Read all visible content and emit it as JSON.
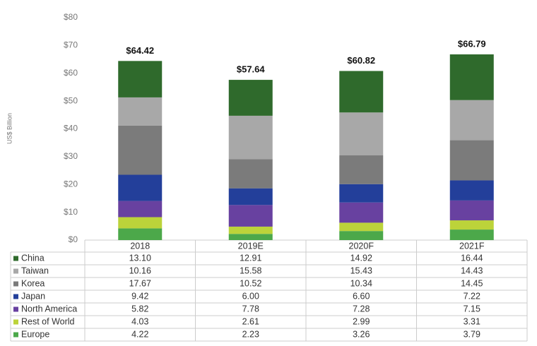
{
  "chart_data": {
    "type": "stacked-bar",
    "y_label": "US$ Billion",
    "categories": [
      "2018",
      "2019E",
      "2020F",
      "2021F"
    ],
    "series": [
      {
        "name": "China",
        "color": "#2f6a2c",
        "values": [
          13.1,
          12.91,
          14.92,
          16.44
        ],
        "value_labels": [
          "13.10",
          "12.91",
          "14.92",
          "16.44"
        ]
      },
      {
        "name": "Taiwan",
        "color": "#a8a8a8",
        "values": [
          10.16,
          15.58,
          15.43,
          14.43
        ],
        "value_labels": [
          "10.16",
          "15.58",
          "15.43",
          "14.43"
        ]
      },
      {
        "name": "Korea",
        "color": "#7b7b7b",
        "values": [
          17.67,
          10.52,
          10.34,
          14.45
        ],
        "value_labels": [
          "17.67",
          "10.52",
          "10.34",
          "14.45"
        ]
      },
      {
        "name": "Japan",
        "color": "#233f9a",
        "values": [
          9.42,
          6.0,
          6.6,
          7.22
        ],
        "value_labels": [
          "9.42",
          "6.00",
          "6.60",
          "7.22"
        ]
      },
      {
        "name": "North America",
        "color": "#6841a0",
        "values": [
          5.82,
          7.78,
          7.28,
          7.15
        ],
        "value_labels": [
          "5.82",
          "7.78",
          "7.28",
          "7.15"
        ]
      },
      {
        "name": "Rest of World",
        "color": "#bcd33a",
        "values": [
          4.03,
          2.61,
          2.99,
          3.31
        ],
        "value_labels": [
          "4.03",
          "2.61",
          "2.99",
          "3.31"
        ]
      },
      {
        "name": "Europe",
        "color": "#4ca84a",
        "values": [
          4.22,
          2.23,
          3.26,
          3.79
        ],
        "value_labels": [
          "4.22",
          "2.23",
          "3.26",
          "3.79"
        ]
      }
    ],
    "totals": {
      "values": [
        64.42,
        57.64,
        60.82,
        66.79
      ],
      "value_labels": [
        "$64.42",
        "$57.64",
        "$60.82",
        "$66.79"
      ]
    },
    "ylim": [
      0,
      80
    ],
    "yticks": [
      {
        "value": 0,
        "label": "$0"
      },
      {
        "value": 10,
        "label": "$10"
      },
      {
        "value": 20,
        "label": "$20"
      },
      {
        "value": 30,
        "label": "$30"
      },
      {
        "value": 40,
        "label": "$40"
      },
      {
        "value": 50,
        "label": "$50"
      },
      {
        "value": 60,
        "label": "$60"
      },
      {
        "value": 70,
        "label": "$70"
      },
      {
        "value": 80,
        "label": "$80"
      }
    ]
  }
}
